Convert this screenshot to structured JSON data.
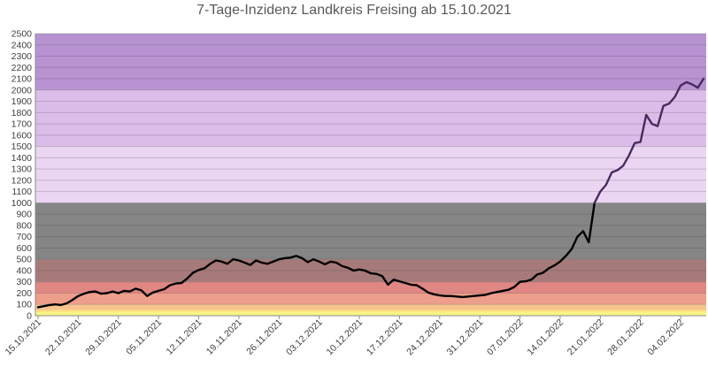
{
  "chart_data": {
    "type": "line",
    "title": "7-Tage-Inzidenz Landkreis Freising ab 15.10.2021",
    "xlabel": "",
    "ylabel": "",
    "ylim": [
      0,
      2500
    ],
    "ytick_step": 100,
    "grid": true,
    "x_tick_labels": [
      "15.10.2021",
      "22.10.2021",
      "29.10.2021",
      "05.11.2021",
      "12.11.2021",
      "19.11.2021",
      "26.11.2021",
      "03.12.2021",
      "10.12.2021",
      "17.12.2021",
      "24.12.2021",
      "31.12.2021",
      "07.01.2022",
      "14.01.2022",
      "21.01.2022",
      "28.01.2022",
      "04.02.2022"
    ],
    "bands": [
      {
        "from": 0,
        "to": 35,
        "color": "#f5f584"
      },
      {
        "from": 35,
        "to": 50,
        "color": "#ffe07a"
      },
      {
        "from": 50,
        "to": 100,
        "color": "#f7c48e"
      },
      {
        "from": 100,
        "to": 200,
        "color": "#ee9f8c"
      },
      {
        "from": 200,
        "to": 300,
        "color": "#e08783"
      },
      {
        "from": 300,
        "to": 500,
        "color": "#a77a7a"
      },
      {
        "from": 500,
        "to": 1000,
        "color": "#858585"
      },
      {
        "from": 1000,
        "to": 1500,
        "color": "#ead6f2"
      },
      {
        "from": 1500,
        "to": 2000,
        "color": "#dcbde9"
      },
      {
        "from": 2000,
        "to": 2500,
        "color": "#b893d2"
      }
    ],
    "series": [
      {
        "line_color_below_1000": "#000000",
        "line_color_above_1000": "#4a2a5e",
        "x": [
          "15.10.2021",
          "16.10.2021",
          "17.10.2021",
          "18.10.2021",
          "19.10.2021",
          "20.10.2021",
          "21.10.2021",
          "22.10.2021",
          "23.10.2021",
          "24.10.2021",
          "25.10.2021",
          "26.10.2021",
          "27.10.2021",
          "28.10.2021",
          "29.10.2021",
          "30.10.2021",
          "31.10.2021",
          "01.11.2021",
          "02.11.2021",
          "03.11.2021",
          "04.11.2021",
          "05.11.2021",
          "06.11.2021",
          "07.11.2021",
          "08.11.2021",
          "09.11.2021",
          "10.11.2021",
          "11.11.2021",
          "12.11.2021",
          "13.11.2021",
          "14.11.2021",
          "15.11.2021",
          "16.11.2021",
          "17.11.2021",
          "18.11.2021",
          "19.11.2021",
          "20.11.2021",
          "21.11.2021",
          "22.11.2021",
          "23.11.2021",
          "24.11.2021",
          "25.11.2021",
          "26.11.2021",
          "27.11.2021",
          "28.11.2021",
          "29.11.2021",
          "30.11.2021",
          "01.12.2021",
          "02.12.2021",
          "03.12.2021",
          "04.12.2021",
          "05.12.2021",
          "06.12.2021",
          "07.12.2021",
          "08.12.2021",
          "09.12.2021",
          "10.12.2021",
          "11.12.2021",
          "12.12.2021",
          "13.12.2021",
          "14.12.2021",
          "15.12.2021",
          "16.12.2021",
          "17.12.2021",
          "18.12.2021",
          "19.12.2021",
          "20.12.2021",
          "21.12.2021",
          "22.12.2021",
          "23.12.2021",
          "24.12.2021",
          "25.12.2021",
          "26.12.2021",
          "27.12.2021",
          "28.12.2021",
          "29.12.2021",
          "30.12.2021",
          "31.12.2021",
          "01.01.2022",
          "02.01.2022",
          "03.01.2022",
          "04.01.2022",
          "05.01.2022",
          "06.01.2022",
          "07.01.2022",
          "08.01.2022",
          "09.01.2022",
          "10.01.2022",
          "11.01.2022",
          "12.01.2022",
          "13.01.2022",
          "14.01.2022",
          "15.01.2022",
          "16.01.2022",
          "17.01.2022",
          "18.01.2022",
          "19.01.2022",
          "20.01.2022",
          "21.01.2022",
          "22.01.2022",
          "23.01.2022",
          "24.01.2022",
          "25.01.2022",
          "26.01.2022",
          "27.01.2022",
          "28.01.2022",
          "29.01.2022",
          "30.01.2022",
          "31.01.2022",
          "01.02.2022",
          "02.02.2022",
          "03.02.2022",
          "04.02.2022",
          "05.02.2022",
          "06.02.2022",
          "07.02.2022",
          "08.02.2022"
        ],
        "values": [
          75,
          85,
          95,
          100,
          95,
          110,
          140,
          175,
          195,
          210,
          215,
          195,
          200,
          215,
          200,
          220,
          215,
          240,
          225,
          175,
          205,
          220,
          235,
          270,
          285,
          290,
          330,
          380,
          405,
          420,
          460,
          490,
          480,
          460,
          500,
          490,
          470,
          450,
          490,
          470,
          460,
          480,
          500,
          510,
          515,
          530,
          510,
          475,
          500,
          480,
          455,
          480,
          470,
          440,
          425,
          400,
          410,
          400,
          375,
          370,
          350,
          275,
          320,
          305,
          290,
          275,
          270,
          240,
          205,
          190,
          180,
          175,
          175,
          170,
          165,
          170,
          175,
          180,
          185,
          200,
          210,
          220,
          230,
          255,
          300,
          305,
          320,
          365,
          380,
          420,
          445,
          480,
          530,
          590,
          700,
          750,
          650,
          1000,
          1100,
          1160,
          1270,
          1290,
          1330,
          1420,
          1530,
          1540,
          1780,
          1700,
          1680,
          1860,
          1880,
          1940,
          2040,
          2070,
          2050,
          2020,
          2100
        ]
      }
    ]
  }
}
